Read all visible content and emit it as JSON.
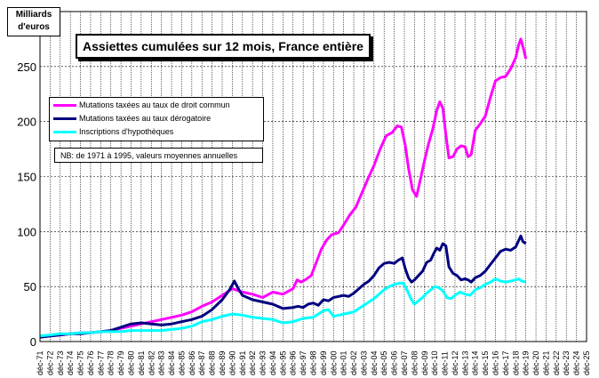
{
  "chart_data": {
    "type": "line",
    "title": "Assiettes cumulées sur 12 mois, France entière",
    "ylabel": "Milliards d'euros",
    "ylabel_lines": [
      "Milliards",
      "d'euros"
    ],
    "note": "NB:  de 1971 à 1995, valeurs moyennes annuelles",
    "ylim": [
      0,
      300
    ],
    "yticks": [
      0,
      50,
      100,
      150,
      200,
      250
    ],
    "xlim": [
      1971,
      2025
    ],
    "grid": true,
    "legend": "left",
    "x_ticks": [
      "déc-71",
      "déc-72",
      "déc-73",
      "déc-74",
      "déc-75",
      "déc-76",
      "déc-77",
      "déc-78",
      "déc-79",
      "déc-80",
      "déc-81",
      "déc-82",
      "déc-83",
      "déc-84",
      "déc-85",
      "déc-86",
      "déc-87",
      "déc-88",
      "déc-89",
      "déc-90",
      "déc-91",
      "déc-92",
      "déc-93",
      "déc-94",
      "déc-95",
      "déc-96",
      "déc-97",
      "déc-98",
      "déc-99",
      "déc-00",
      "déc-01",
      "déc-02",
      "déc-03",
      "déc-04",
      "déc-05",
      "déc-06",
      "déc-07",
      "déc-08",
      "déc-09",
      "déc-10",
      "déc-11",
      "déc-12",
      "déc-13",
      "déc-14",
      "déc-15",
      "déc-16",
      "déc-17",
      "déc-18",
      "déc-19",
      "déc-20",
      "déc-21",
      "déc-22",
      "déc-23",
      "déc-24",
      "déc-25"
    ],
    "series": [
      {
        "name": "Mutations taxées au taux de droit commun",
        "color": "#ff00ff",
        "points": [
          [
            1971,
            4
          ],
          [
            1972,
            5
          ],
          [
            1973,
            6
          ],
          [
            1974,
            7
          ],
          [
            1975,
            8
          ],
          [
            1976,
            8
          ],
          [
            1977,
            9
          ],
          [
            1978,
            10
          ],
          [
            1979,
            12
          ],
          [
            1980,
            14
          ],
          [
            1981,
            16
          ],
          [
            1982,
            18
          ],
          [
            1983,
            20
          ],
          [
            1984,
            22
          ],
          [
            1985,
            24
          ],
          [
            1986,
            27
          ],
          [
            1987,
            32
          ],
          [
            1988,
            36
          ],
          [
            1989,
            42
          ],
          [
            1990,
            48
          ],
          [
            1991,
            45
          ],
          [
            1992,
            43
          ],
          [
            1993,
            40
          ],
          [
            1994,
            45
          ],
          [
            1995,
            43
          ],
          [
            1996,
            48
          ],
          [
            1996.4,
            56
          ],
          [
            1996.8,
            54
          ],
          [
            1997.2,
            56
          ],
          [
            1997.8,
            60
          ],
          [
            1998.3,
            72
          ],
          [
            1998.8,
            84
          ],
          [
            1999.3,
            92
          ],
          [
            1999.8,
            97
          ],
          [
            2000.5,
            99
          ],
          [
            2001,
            106
          ],
          [
            2001.6,
            115
          ],
          [
            2002.2,
            122
          ],
          [
            2002.8,
            135
          ],
          [
            2003.4,
            148
          ],
          [
            2004,
            160
          ],
          [
            2004.6,
            175
          ],
          [
            2005.2,
            187
          ],
          [
            2005.8,
            190
          ],
          [
            2006.3,
            196
          ],
          [
            2006.7,
            195
          ],
          [
            2007.1,
            178
          ],
          [
            2007.4,
            158
          ],
          [
            2007.8,
            138
          ],
          [
            2008.2,
            132
          ],
          [
            2008.6,
            148
          ],
          [
            2009,
            165
          ],
          [
            2009.4,
            180
          ],
          [
            2009.8,
            193
          ],
          [
            2010.2,
            210
          ],
          [
            2010.5,
            218
          ],
          [
            2010.8,
            212
          ],
          [
            2011.1,
            188
          ],
          [
            2011.4,
            167
          ],
          [
            2011.8,
            168
          ],
          [
            2012.2,
            175
          ],
          [
            2012.6,
            178
          ],
          [
            2013,
            177
          ],
          [
            2013.3,
            168
          ],
          [
            2013.6,
            170
          ],
          [
            2014,
            192
          ],
          [
            2014.5,
            198
          ],
          [
            2015,
            205
          ],
          [
            2015.5,
            222
          ],
          [
            2016,
            237
          ],
          [
            2016.5,
            240
          ],
          [
            2017,
            241
          ],
          [
            2017.5,
            248
          ],
          [
            2018,
            258
          ],
          [
            2018.3,
            270
          ],
          [
            2018.5,
            275
          ],
          [
            2018.8,
            265
          ],
          [
            2019,
            257
          ]
        ]
      },
      {
        "name": "Mutations taxées au taux dérogatoire",
        "color": "#000080",
        "points": [
          [
            1971,
            4
          ],
          [
            1972,
            5
          ],
          [
            1973,
            6
          ],
          [
            1974,
            7
          ],
          [
            1975,
            7
          ],
          [
            1976,
            8
          ],
          [
            1977,
            9
          ],
          [
            1978,
            10
          ],
          [
            1979,
            13
          ],
          [
            1980,
            16
          ],
          [
            1981,
            17
          ],
          [
            1982,
            16
          ],
          [
            1983,
            15
          ],
          [
            1984,
            16
          ],
          [
            1985,
            18
          ],
          [
            1986,
            20
          ],
          [
            1987,
            23
          ],
          [
            1988,
            29
          ],
          [
            1989,
            38
          ],
          [
            1989.8,
            48
          ],
          [
            1990.2,
            55
          ],
          [
            1990.6,
            48
          ],
          [
            1991,
            42
          ],
          [
            1992,
            38
          ],
          [
            1993,
            36
          ],
          [
            1994,
            34
          ],
          [
            1995,
            30
          ],
          [
            1996,
            31
          ],
          [
            1996.5,
            32
          ],
          [
            1997,
            31
          ],
          [
            1997.5,
            34
          ],
          [
            1998,
            35
          ],
          [
            1998.5,
            33
          ],
          [
            1999,
            38
          ],
          [
            1999.5,
            37
          ],
          [
            2000,
            40
          ],
          [
            2000.5,
            41
          ],
          [
            2001,
            42
          ],
          [
            2001.5,
            41
          ],
          [
            2002,
            44
          ],
          [
            2002.5,
            48
          ],
          [
            2003,
            52
          ],
          [
            2003.5,
            55
          ],
          [
            2004,
            60
          ],
          [
            2004.5,
            67
          ],
          [
            2005,
            71
          ],
          [
            2005.5,
            72
          ],
          [
            2006,
            71
          ],
          [
            2006.4,
            74
          ],
          [
            2006.8,
            76
          ],
          [
            2007.1,
            66
          ],
          [
            2007.4,
            58
          ],
          [
            2007.7,
            54
          ],
          [
            2008,
            56
          ],
          [
            2008.4,
            60
          ],
          [
            2008.8,
            64
          ],
          [
            2009.2,
            72
          ],
          [
            2009.6,
            74
          ],
          [
            2009.9,
            80
          ],
          [
            2010.2,
            85
          ],
          [
            2010.5,
            83
          ],
          [
            2010.8,
            89
          ],
          [
            2011.1,
            87
          ],
          [
            2011.4,
            68
          ],
          [
            2011.8,
            62
          ],
          [
            2012.2,
            60
          ],
          [
            2012.6,
            56
          ],
          [
            2013,
            57
          ],
          [
            2013.3,
            56
          ],
          [
            2013.6,
            54
          ],
          [
            2014,
            58
          ],
          [
            2014.5,
            60
          ],
          [
            2015,
            64
          ],
          [
            2015.5,
            70
          ],
          [
            2016,
            76
          ],
          [
            2016.5,
            82
          ],
          [
            2017,
            84
          ],
          [
            2017.5,
            83
          ],
          [
            2018,
            86
          ],
          [
            2018.3,
            92
          ],
          [
            2018.5,
            96
          ],
          [
            2018.7,
            91
          ],
          [
            2019,
            89
          ]
        ]
      },
      {
        "name": "Inscriptions d'hypothèques",
        "color": "#00ffff",
        "points": [
          [
            1971,
            5
          ],
          [
            1972,
            6
          ],
          [
            1973,
            7
          ],
          [
            1974,
            7
          ],
          [
            1975,
            8
          ],
          [
            1976,
            8
          ],
          [
            1977,
            9
          ],
          [
            1978,
            9
          ],
          [
            1979,
            9
          ],
          [
            1980,
            10
          ],
          [
            1981,
            10
          ],
          [
            1982,
            10
          ],
          [
            1983,
            10
          ],
          [
            1984,
            11
          ],
          [
            1985,
            12
          ],
          [
            1986,
            14
          ],
          [
            1987,
            18
          ],
          [
            1988,
            20
          ],
          [
            1989,
            23
          ],
          [
            1990,
            25
          ],
          [
            1991,
            24
          ],
          [
            1992,
            22
          ],
          [
            1993,
            21
          ],
          [
            1994,
            20
          ],
          [
            1995,
            17
          ],
          [
            1996,
            18
          ],
          [
            1997,
            21
          ],
          [
            1998,
            22
          ],
          [
            1999,
            28
          ],
          [
            1999.5,
            29
          ],
          [
            2000,
            23
          ],
          [
            2001,
            25
          ],
          [
            2002,
            27
          ],
          [
            2002.5,
            30
          ],
          [
            2003,
            33
          ],
          [
            2003.5,
            36
          ],
          [
            2004,
            39
          ],
          [
            2004.5,
            43
          ],
          [
            2005,
            47
          ],
          [
            2005.5,
            50
          ],
          [
            2006,
            52
          ],
          [
            2006.5,
            53
          ],
          [
            2006.9,
            53
          ],
          [
            2007.3,
            46
          ],
          [
            2007.7,
            38
          ],
          [
            2008,
            34
          ],
          [
            2008.4,
            37
          ],
          [
            2008.8,
            40
          ],
          [
            2009.2,
            44
          ],
          [
            2009.6,
            47
          ],
          [
            2010,
            50
          ],
          [
            2010.4,
            49
          ],
          [
            2010.8,
            46
          ],
          [
            2011.2,
            40
          ],
          [
            2011.6,
            39
          ],
          [
            2012,
            42
          ],
          [
            2012.5,
            45
          ],
          [
            2013,
            43
          ],
          [
            2013.5,
            42
          ],
          [
            2014,
            47
          ],
          [
            2014.5,
            49
          ],
          [
            2015,
            52
          ],
          [
            2015.5,
            54
          ],
          [
            2016,
            57
          ],
          [
            2016.5,
            55
          ],
          [
            2017,
            54
          ],
          [
            2017.5,
            55
          ],
          [
            2018,
            56
          ],
          [
            2018.3,
            57
          ],
          [
            2018.6,
            55
          ],
          [
            2019,
            54
          ]
        ]
      }
    ]
  }
}
